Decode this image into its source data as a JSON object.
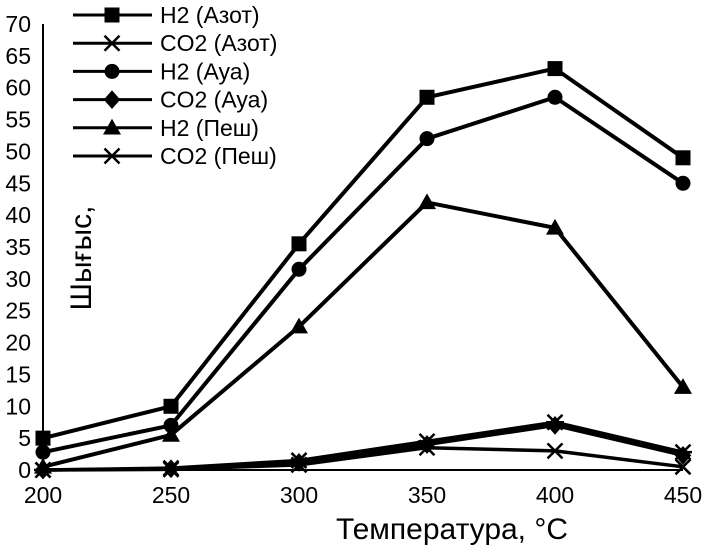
{
  "chart_data": {
    "type": "line",
    "title": "",
    "xlabel": "Температура, °C",
    "ylabel": "Шығыс,",
    "x": [
      200,
      250,
      300,
      350,
      400,
      450
    ],
    "xlim": [
      200,
      450
    ],
    "ylim": [
      0,
      70
    ],
    "x_ticks": [
      "200",
      "250",
      "300",
      "350",
      "400",
      "450"
    ],
    "y_ticks": [
      "0",
      "5",
      "10",
      "15",
      "20",
      "25",
      "30",
      "35",
      "40",
      "45",
      "50",
      "55",
      "60",
      "65",
      "70"
    ],
    "grid": false,
    "legend_position": "top-left",
    "line_color": "#000000",
    "series": [
      {
        "name": "H2 (Азот)",
        "marker": "square",
        "values": [
          5,
          10,
          35.5,
          58.5,
          63,
          49
        ]
      },
      {
        "name": "CO2 (Азот)",
        "marker": "star",
        "values": [
          0,
          0.3,
          1.5,
          4.5,
          7.5,
          2.8
        ]
      },
      {
        "name": "H2 (Ауа)",
        "marker": "circle",
        "values": [
          2.8,
          7,
          31.5,
          52,
          58.5,
          45
        ]
      },
      {
        "name": "CO2 (Ауа)",
        "marker": "diamond",
        "values": [
          0,
          0.2,
          1.2,
          4,
          7,
          2.3
        ]
      },
      {
        "name": "H2 (Пеш)",
        "marker": "triangle",
        "values": [
          0.5,
          5.5,
          22.5,
          42,
          38,
          13
        ]
      },
      {
        "name": "CO2 (Пеш)",
        "marker": "x",
        "values": [
          0,
          0.1,
          0.8,
          3.5,
          3,
          0.5
        ]
      }
    ]
  }
}
